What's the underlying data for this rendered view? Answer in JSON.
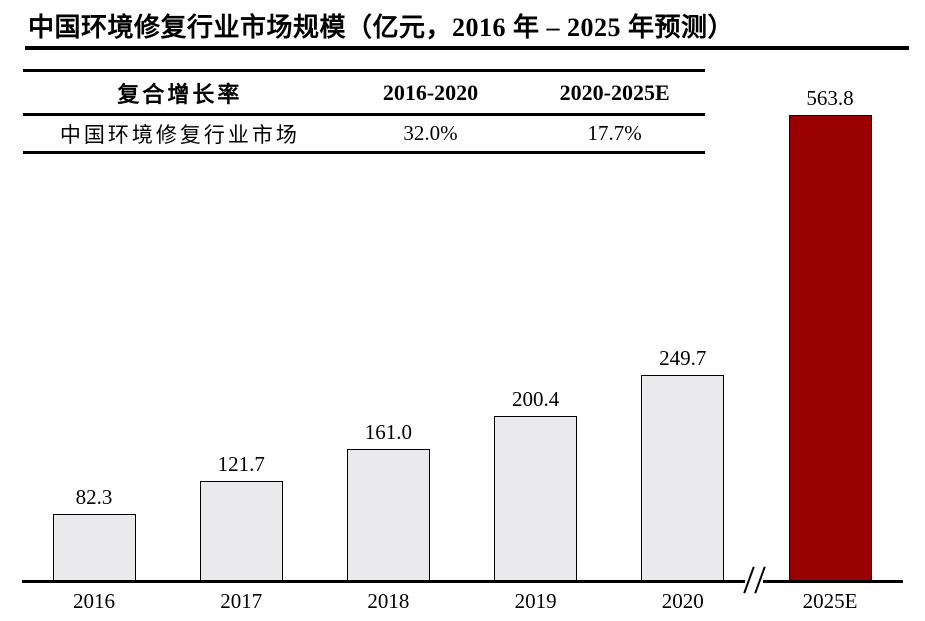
{
  "title": "中国环境修复行业市场规模（亿元，2016 年 – 2025 年预测）",
  "table": {
    "headers": [
      "复合增长率",
      "2016-2020",
      "2020-2025E"
    ],
    "rows": [
      {
        "label": "中国环境修复行业市场",
        "cagr_2016_2020": "32.0%",
        "cagr_2020_2025e": "17.7%"
      }
    ]
  },
  "chart_data": {
    "type": "bar",
    "title": "中国环境修复行业市场规模（亿元，2016 年 – 2025 年预测）",
    "unit": "亿元",
    "categories": [
      "2016",
      "2017",
      "2018",
      "2019",
      "2020",
      "2025E"
    ],
    "values": [
      82.3,
      121.7,
      161.0,
      200.4,
      249.7,
      563.8
    ],
    "value_labels": [
      "82.3",
      "121.7",
      "161.0",
      "200.4",
      "249.7",
      "563.8"
    ],
    "bar_default_color": "#EAE9EB",
    "bar_highlight_color": "#990000",
    "bar_border_color": "#000000",
    "highlight_category": "2025E",
    "axis_break_between": [
      "2020",
      "2025E"
    ],
    "ylim": [
      0,
      656
    ],
    "grid": false,
    "legend": false,
    "y_axis_shown": false
  }
}
